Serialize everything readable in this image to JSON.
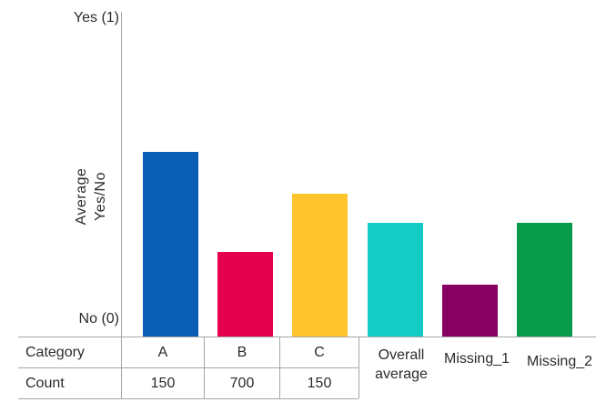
{
  "axis": {
    "yes_label": "Yes (1)",
    "no_label": "No (0)",
    "title": "Average\nYes/No"
  },
  "category_labels": {
    "overall": "Overall\naverage",
    "missing1": "Missing_1",
    "missing2": "Missing_2"
  },
  "table": {
    "rows": [
      {
        "header": "Category",
        "cells": [
          "A",
          "B",
          "C"
        ]
      },
      {
        "header": "Count",
        "cells": [
          "150",
          "700",
          "150"
        ]
      }
    ]
  },
  "chart_data": {
    "type": "bar",
    "title": "",
    "categories": [
      "A",
      "B",
      "C",
      "Overall average",
      "Missing_1",
      "Missing_2"
    ],
    "values": [
      0.57,
      0.26,
      0.44,
      0.35,
      0.16,
      0.35
    ],
    "colors": [
      "#0A5FB4",
      "#E4024E",
      "#FFC32B",
      "#14CBC6",
      "#870262",
      "#079A48"
    ],
    "counts": [
      150,
      700,
      150
    ],
    "ylabel": "Average Yes/No",
    "y_tick_labels": [
      "No (0)",
      "Yes (1)"
    ],
    "ylim": [
      0,
      1
    ],
    "grid": false,
    "legend": "none"
  }
}
